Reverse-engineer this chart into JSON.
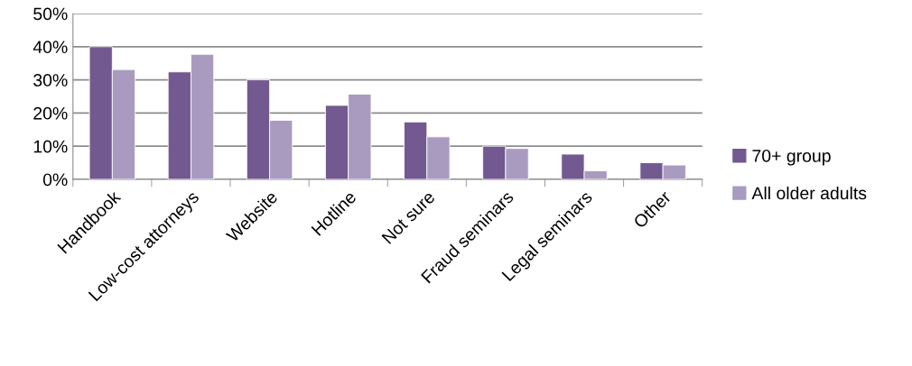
{
  "chart_data": {
    "type": "bar",
    "categories": [
      "Handbook",
      "Low-cost attorneys",
      "Website",
      "Hotline",
      "Not sure",
      "Fraud seminars",
      "Legal seminars",
      "Other"
    ],
    "series": [
      {
        "name": "70+ group",
        "color": "#72598f",
        "values": [
          40,
          32.4,
          30,
          22.3,
          17.3,
          10,
          7.6,
          5
        ]
      },
      {
        "name": "All older adults",
        "color": "#a99bc0",
        "values": [
          33.1,
          37.7,
          17.8,
          25.7,
          12.8,
          9.3,
          2.6,
          4.3
        ]
      }
    ],
    "ylim": [
      0,
      50
    ],
    "yticks": [
      {
        "value": 0,
        "label": "0%"
      },
      {
        "value": 10,
        "label": "10%"
      },
      {
        "value": 20,
        "label": "20%"
      },
      {
        "value": 30,
        "label": "30%"
      },
      {
        "value": 40,
        "label": "40%"
      },
      {
        "value": 50,
        "label": "50%"
      }
    ],
    "grid": "y",
    "legend": "right"
  }
}
